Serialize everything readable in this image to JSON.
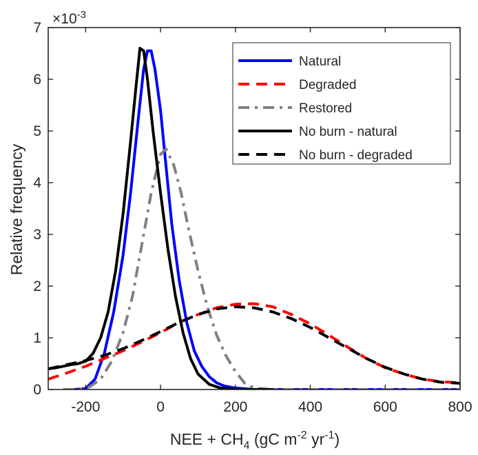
{
  "chart_data": {
    "type": "line",
    "xlabel_main": "NEE + CH",
    "xlabel_sub": "4",
    "xlabel_unit_a": " (gC m",
    "xlabel_sup_a": "-2",
    "xlabel_unit_b": " yr",
    "xlabel_sup_b": "-1",
    "xlabel_close": ")",
    "ylabel": "Relative frequency",
    "y_exponent_base": "×10",
    "y_exponent": "-3",
    "xlim": [
      -300,
      800
    ],
    "ylim": [
      0,
      7
    ],
    "xticks": [
      "-200",
      "0",
      "200",
      "400",
      "600",
      "800"
    ],
    "xtick_values": [
      -200,
      0,
      200,
      400,
      600,
      800
    ],
    "yticks": [
      "0",
      "1",
      "2",
      "3",
      "4",
      "5",
      "6",
      "7"
    ],
    "ytick_values": [
      0,
      1,
      2,
      3,
      4,
      5,
      6,
      7
    ],
    "grid": false,
    "legend_position": "top-right",
    "series": [
      {
        "name": "Natural",
        "color": "#0000ff",
        "dash": "solid",
        "x": [
          -260,
          -230,
          -200,
          -175,
          -150,
          -125,
          -100,
          -80,
          -60,
          -45,
          -35,
          -25,
          -15,
          0,
          15,
          30,
          50,
          70,
          90,
          110,
          130,
          150,
          170,
          200,
          250,
          300,
          400,
          500,
          600,
          700,
          800
        ],
        "y": [
          0,
          0,
          0.02,
          0.2,
          0.7,
          1.5,
          2.6,
          3.8,
          5.2,
          6.2,
          6.55,
          6.55,
          6.2,
          5.4,
          4.3,
          3.2,
          2.1,
          1.3,
          0.75,
          0.45,
          0.25,
          0.13,
          0.07,
          0.03,
          0,
          0,
          0,
          0,
          0,
          0,
          0
        ]
      },
      {
        "name": "Degraded",
        "color": "#ff0000",
        "dash": "dashed",
        "x": [
          -300,
          -250,
          -200,
          -150,
          -100,
          -50,
          0,
          50,
          100,
          150,
          200,
          250,
          300,
          350,
          400,
          450,
          500,
          550,
          600,
          650,
          700,
          750,
          800
        ],
        "y": [
          0.2,
          0.32,
          0.45,
          0.6,
          0.75,
          0.92,
          1.1,
          1.3,
          1.45,
          1.58,
          1.65,
          1.66,
          1.6,
          1.45,
          1.27,
          1.05,
          0.82,
          0.6,
          0.42,
          0.3,
          0.2,
          0.15,
          0.13
        ]
      },
      {
        "name": "Restored",
        "color": "#808080",
        "dash": "dashdot",
        "x": [
          -260,
          -220,
          -190,
          -160,
          -130,
          -100,
          -75,
          -50,
          -25,
          0,
          15,
          35,
          55,
          75,
          100,
          125,
          150,
          175,
          200,
          225,
          250,
          300,
          400,
          500,
          600,
          700,
          800
        ],
        "y": [
          0,
          0,
          0.05,
          0.2,
          0.55,
          1.1,
          1.8,
          2.8,
          3.8,
          4.55,
          4.65,
          4.35,
          3.8,
          3.1,
          2.3,
          1.6,
          1.05,
          0.65,
          0.35,
          0.12,
          0.03,
          0,
          0,
          0,
          0,
          0,
          0
        ]
      },
      {
        "name": "No burn - natural",
        "color": "#000000",
        "dash": "solid",
        "x": [
          -300,
          -280,
          -260,
          -240,
          -220,
          -200,
          -180,
          -160,
          -140,
          -120,
          -100,
          -80,
          -65,
          -55,
          -45,
          -35,
          -20,
          0,
          20,
          40,
          60,
          80,
          100,
          130,
          160,
          200,
          250,
          300
        ],
        "y": [
          0.4,
          0.42,
          0.45,
          0.48,
          0.5,
          0.55,
          0.7,
          1.0,
          1.5,
          2.3,
          3.4,
          4.8,
          5.9,
          6.6,
          6.55,
          6.0,
          5.0,
          3.8,
          2.7,
          1.8,
          1.1,
          0.6,
          0.3,
          0.1,
          0.03,
          0,
          0,
          0
        ]
      },
      {
        "name": "No burn - degraded",
        "color": "#000000",
        "dash": "dashed",
        "x": [
          -300,
          -250,
          -200,
          -150,
          -100,
          -50,
          0,
          50,
          100,
          150,
          200,
          250,
          300,
          350,
          400,
          450,
          500,
          550,
          600,
          650,
          700,
          750,
          800
        ],
        "y": [
          0.4,
          0.48,
          0.56,
          0.66,
          0.79,
          0.95,
          1.12,
          1.3,
          1.45,
          1.56,
          1.6,
          1.58,
          1.5,
          1.37,
          1.2,
          1.0,
          0.8,
          0.6,
          0.43,
          0.3,
          0.2,
          0.14,
          0.12
        ]
      }
    ]
  }
}
